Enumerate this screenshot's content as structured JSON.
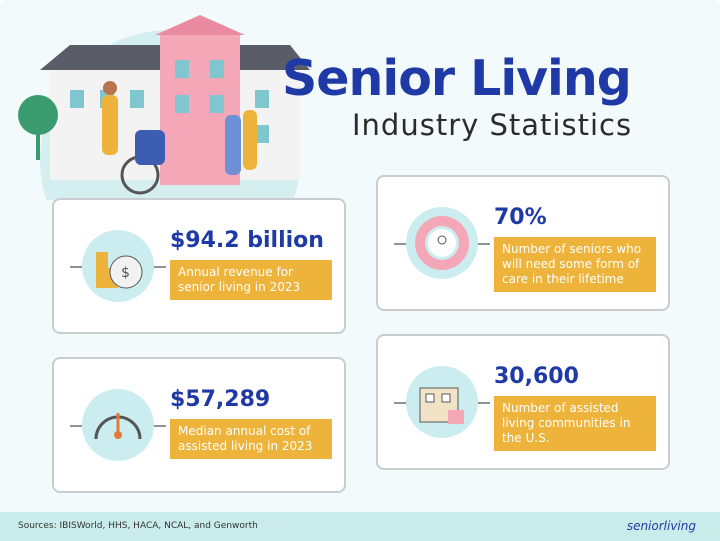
{
  "title": "Senior Living",
  "subtitle": "Industry Statistics",
  "stats": [
    {
      "value": "$94.2 billion",
      "description": "Annual revenue for senior living in 2023",
      "icon": "money-bag-coins-icon"
    },
    {
      "value": "70%",
      "description": "Number of seniors who will need some form of care in their lifetime",
      "icon": "person-ring-icon"
    },
    {
      "value": "$57,289",
      "description": "Median annual cost of assisted living in 2023",
      "icon": "gauge-icon"
    },
    {
      "value": "30,600",
      "description": "Number of assisted living communities in the U.S.",
      "icon": "building-icon"
    }
  ],
  "footer": {
    "sources": "Sources: IBISWorld, HHS, HACA, NCAL, and Genworth",
    "logo": "seniorliving.org"
  },
  "colors": {
    "blue": "#1f3aa6",
    "orange": "#eeb33a",
    "teal": "#cbedef"
  }
}
